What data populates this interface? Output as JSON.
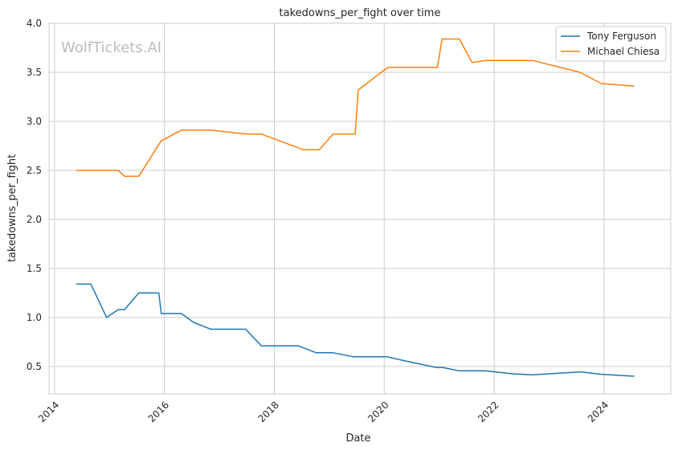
{
  "chart_data": {
    "type": "line",
    "title": "takedowns_per_fight over time",
    "xlabel": "Date",
    "ylabel": "takedowns_per_fight",
    "watermark": "WolfTickets.AI",
    "xlim": [
      "2013-11-25",
      "2025-03-20"
    ],
    "ylim": [
      0.22,
      4.0
    ],
    "x_ticks": [
      "2014",
      "2016",
      "2018",
      "2020",
      "2022",
      "2024"
    ],
    "y_ticks": [
      "0.5",
      "1.0",
      "1.5",
      "2.0",
      "2.5",
      "3.0",
      "3.5",
      "4.0"
    ],
    "grid": true,
    "legend_position": "upper right",
    "series": [
      {
        "name": "Tony Ferguson",
        "color": "#1f77b4",
        "points": [
          [
            "2014-05-24",
            1.34
          ],
          [
            "2014-08-30",
            1.34
          ],
          [
            "2014-12-13",
            1.0
          ],
          [
            "2015-02-28",
            1.08
          ],
          [
            "2015-04-11",
            1.08
          ],
          [
            "2015-07-15",
            1.25
          ],
          [
            "2015-11-25",
            1.25
          ],
          [
            "2015-12-11",
            1.04
          ],
          [
            "2016-04-23",
            1.04
          ],
          [
            "2016-07-13",
            0.95
          ],
          [
            "2016-11-05",
            0.88
          ],
          [
            "2017-06-24",
            0.88
          ],
          [
            "2017-10-07",
            0.71
          ],
          [
            "2018-06-09",
            0.71
          ],
          [
            "2018-10-06",
            0.64
          ],
          [
            "2019-01-26",
            0.64
          ],
          [
            "2019-06-08",
            0.6
          ],
          [
            "2020-01-18",
            0.6
          ],
          [
            "2020-05-09",
            0.56
          ],
          [
            "2020-12-12",
            0.49
          ],
          [
            "2021-01-23",
            0.49
          ],
          [
            "2021-05-15",
            0.455
          ],
          [
            "2021-11-06",
            0.455
          ],
          [
            "2022-05-07",
            0.425
          ],
          [
            "2022-09-10",
            0.415
          ],
          [
            "2023-07-29",
            0.445
          ],
          [
            "2023-12-16",
            0.42
          ],
          [
            "2024-07-20",
            0.4
          ]
        ]
      },
      {
        "name": "Michael Chiesa",
        "color": "#ff7f0e",
        "points": [
          [
            "2014-05-24",
            2.5
          ],
          [
            "2015-02-28",
            2.5
          ],
          [
            "2015-04-11",
            2.44
          ],
          [
            "2015-07-15",
            2.44
          ],
          [
            "2015-12-10",
            2.8
          ],
          [
            "2016-04-23",
            2.91
          ],
          [
            "2016-11-05",
            2.91
          ],
          [
            "2017-06-25",
            2.87
          ],
          [
            "2017-10-07",
            2.87
          ],
          [
            "2018-07-14",
            2.71
          ],
          [
            "2018-10-27",
            2.71
          ],
          [
            "2019-01-26",
            2.87
          ],
          [
            "2019-06-22",
            2.87
          ],
          [
            "2019-07-13",
            3.32
          ],
          [
            "2020-01-25",
            3.55
          ],
          [
            "2020-12-19",
            3.55
          ],
          [
            "2021-01-20",
            3.84
          ],
          [
            "2021-05-15",
            3.84
          ],
          [
            "2021-08-07",
            3.6
          ],
          [
            "2021-11-06",
            3.62
          ],
          [
            "2022-09-17",
            3.62
          ],
          [
            "2023-07-25",
            3.5
          ],
          [
            "2023-12-16",
            3.385
          ],
          [
            "2024-07-20",
            3.36
          ]
        ]
      }
    ]
  }
}
